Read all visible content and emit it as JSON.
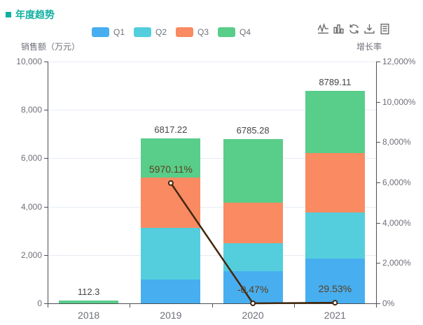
{
  "panel": {
    "title": "年度趋势",
    "title_color": "#10b0a0"
  },
  "toolbox": {
    "icons": [
      "switch-to-line-icon",
      "switch-to-bar-icon",
      "restore-icon",
      "save-as-image-icon",
      "data-view-icon"
    ],
    "icon_color": "#696969"
  },
  "legend": {
    "items": [
      {
        "label": "Q1",
        "color": "#47aef0"
      },
      {
        "label": "Q2",
        "color": "#54cedd"
      },
      {
        "label": "Q3",
        "color": "#f98a61"
      },
      {
        "label": "Q4",
        "color": "#59cd8a"
      }
    ]
  },
  "chart_data": {
    "type": "bar",
    "subtype": "stacked-bar-with-line-overlay",
    "title": "年度趋势",
    "categories": [
      "2018",
      "2019",
      "2020",
      "2021"
    ],
    "series": [
      {
        "name": "Q1",
        "type": "bar",
        "stack": true,
        "color": "#47aef0",
        "values": [
          0,
          983,
          1330,
          1850
        ]
      },
      {
        "name": "Q2",
        "type": "bar",
        "stack": true,
        "color": "#54cedd",
        "values": [
          0,
          2138,
          1155,
          1905
        ]
      },
      {
        "name": "Q3",
        "type": "bar",
        "stack": true,
        "color": "#f98a61",
        "values": [
          0,
          2081,
          1675,
          2460
        ]
      },
      {
        "name": "Q4",
        "type": "bar",
        "stack": true,
        "color": "#59cd8a",
        "values": [
          112.3,
          1615.22,
          2625.28,
          2574.11
        ]
      },
      {
        "name": "增长率",
        "type": "line",
        "color": "#44280e",
        "values": [
          null,
          5970.11,
          -0.47,
          29.53
        ]
      }
    ],
    "stack_totals": [
      112.3,
      6817.22,
      6785.28,
      8789.11
    ],
    "stack_total_labels": [
      "112.3",
      "6817.22",
      "6785.28",
      "8789.11"
    ],
    "line_point_labels": [
      null,
      "5970.11%",
      "-0.47%",
      "29.53%"
    ],
    "left_axis": {
      "name": "销售额（万元）",
      "min": 0,
      "max": 10000,
      "interval": 2000,
      "tick_labels": [
        "0",
        "2,000",
        "4,000",
        "6,000",
        "8,000",
        "10,000"
      ]
    },
    "right_axis": {
      "name": "增长率",
      "min": 0,
      "max": 12000,
      "interval": 2000,
      "tick_labels": [
        "0%",
        "2,000%",
        "4,000%",
        "6,000%",
        "8,000%",
        "10,000%",
        "12,000%"
      ]
    },
    "grid": true,
    "legend_position": "top"
  }
}
